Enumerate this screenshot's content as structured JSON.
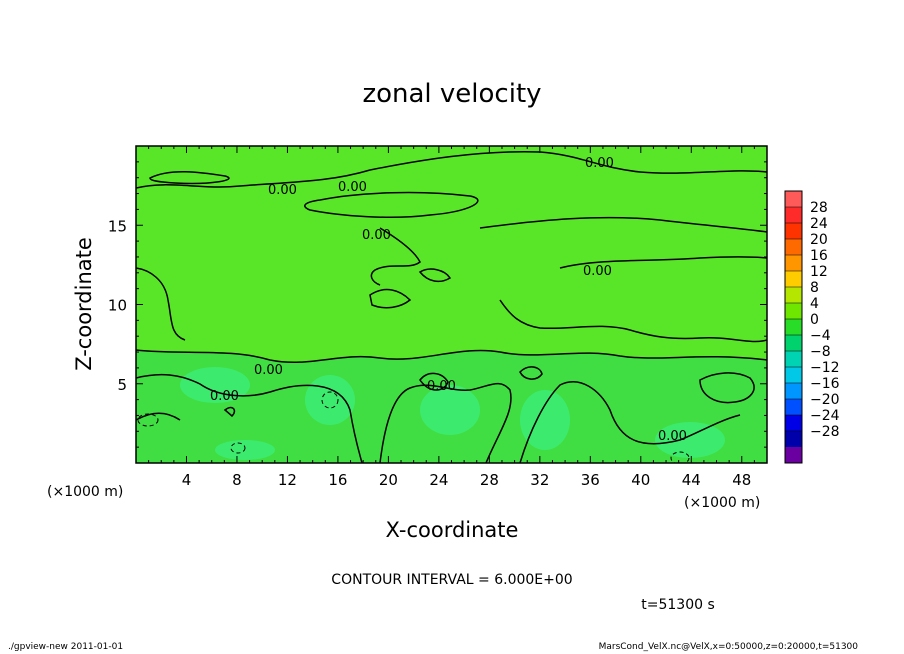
{
  "chart_data": {
    "type": "heatmap",
    "title": "zonal velocity",
    "xlabel": "X-coordinate",
    "ylabel": "Z-coordinate",
    "x_unit": "(×1000 m)",
    "y_unit": "(×1000 m)",
    "xlim": [
      0,
      50
    ],
    "ylim": [
      0,
      20
    ],
    "x_ticks": [
      4,
      8,
      12,
      16,
      20,
      24,
      28,
      32,
      36,
      40,
      44,
      48
    ],
    "y_ticks": [
      5,
      10,
      15
    ],
    "contour_interval_text": "CONTOUR INTERVAL = 6.000E+00",
    "time_text": "t=51300 s",
    "contour_label": "0.00",
    "colorbar": {
      "levels": [
        28,
        24,
        20,
        16,
        12,
        8,
        4,
        0,
        -4,
        -8,
        -12,
        -16,
        -20,
        -24,
        -28
      ],
      "colors": [
        "#ff5a5a",
        "#ff2a2a",
        "#ff3300",
        "#ff6a00",
        "#ff9600",
        "#ffcc00",
        "#b4e600",
        "#6ee600",
        "#28dc28",
        "#00d26e",
        "#00d2b4",
        "#00c8e6",
        "#0096ff",
        "#0050ff",
        "#0000e6",
        "#0000aa",
        "#6a00a0"
      ]
    },
    "field": {
      "background": "#5ae628",
      "lower_layer": "#3cdc46",
      "weak_negative_patches": "#3ceb6e"
    }
  },
  "footer": {
    "left": "./gpview-new   2011-01-01",
    "right": "MarsCond_VelX.nc@VelX,x=0:50000,z=0:20000,t=51300"
  }
}
